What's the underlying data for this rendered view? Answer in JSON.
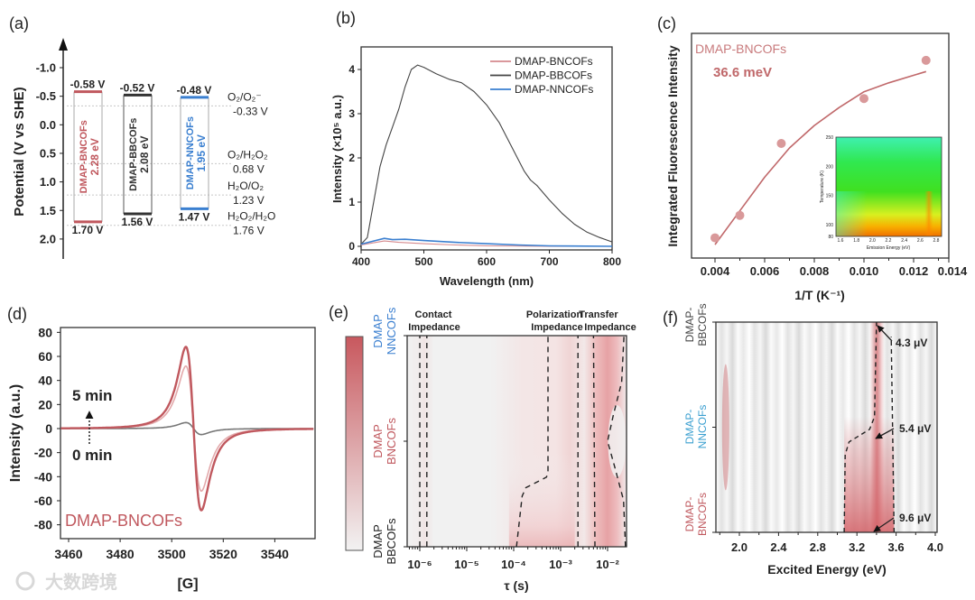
{
  "figure": {
    "panel_labels": [
      "(a)",
      "(b)",
      "(c)",
      "(d)",
      "(e)",
      "(f)"
    ],
    "watermark": "大数跨境"
  },
  "chart_data": [
    {
      "panel": "a",
      "type": "bar",
      "subtype": "band-diagram",
      "ylabel": "Potential (V vs SHE)",
      "ylim": [
        -1.3,
        2.3
      ],
      "yticks": [
        "-1.0",
        "-0.5",
        "0.0",
        "0.5",
        "1.0",
        "1.5",
        "2.0"
      ],
      "bands": [
        {
          "name": "DMAP-BNCOFs",
          "gap_label": "2.28 eV",
          "cb": -0.58,
          "vb": 1.7,
          "cb_label": "-0.58 V",
          "vb_label": "1.70 V",
          "color": "#c0585e"
        },
        {
          "name": "DMAP-BBCOFs",
          "gap_label": "2.08 eV",
          "cb": -0.52,
          "vb": 1.56,
          "cb_label": "-0.52 V",
          "vb_label": "1.56 V",
          "color": "#333333"
        },
        {
          "name": "DMAP-NNCOFs",
          "gap_label": "1.95 eV",
          "cb": -0.48,
          "vb": 1.47,
          "cb_label": "-0.48 V",
          "vb_label": "1.47 V",
          "color": "#3a7fd0"
        }
      ],
      "references": [
        {
          "label": "O₂/O₂⁻",
          "value": -0.33,
          "value_label": "-0.33 V"
        },
        {
          "label": "O₂/H₂O₂",
          "value": 0.68,
          "value_label": "0.68 V"
        },
        {
          "label": "H₂O/O₂",
          "value": 1.23,
          "value_label": "1.23 V"
        },
        {
          "label": "H₂O₂/H₂O",
          "value": 1.76,
          "value_label": "1.76 V"
        }
      ]
    },
    {
      "panel": "b",
      "type": "line",
      "xlabel": "Wavelength (nm)",
      "ylabel": "Intensity (×10⁵ a.u.)",
      "xlim": [
        400,
        800
      ],
      "ylim": [
        -0.1,
        4.5
      ],
      "xticks": [
        "400",
        "500",
        "600",
        "700",
        "800"
      ],
      "yticks": [
        "0",
        "1",
        "2",
        "3",
        "4"
      ],
      "legend_position": "top-right",
      "series": [
        {
          "name": "DMAP-BNCOFs",
          "color": "#d58a8e",
          "points": [
            [
              400,
              0.03
            ],
            [
              420,
              0.08
            ],
            [
              437,
              0.12
            ],
            [
              460,
              0.09
            ],
            [
              500,
              0.06
            ],
            [
              550,
              0.03
            ],
            [
              600,
              0.01
            ],
            [
              700,
              0.0
            ],
            [
              800,
              0.0
            ]
          ]
        },
        {
          "name": "DMAP-BBCOFs",
          "color": "#444444",
          "points": [
            [
              400,
              0.05
            ],
            [
              410,
              0.2
            ],
            [
              420,
              1.0
            ],
            [
              430,
              1.8
            ],
            [
              440,
              2.3
            ],
            [
              450,
              2.7
            ],
            [
              460,
              3.1
            ],
            [
              470,
              3.6
            ],
            [
              480,
              4.0
            ],
            [
              490,
              4.1
            ],
            [
              500,
              4.05
            ],
            [
              520,
              3.9
            ],
            [
              540,
              3.78
            ],
            [
              560,
              3.7
            ],
            [
              580,
              3.5
            ],
            [
              600,
              3.2
            ],
            [
              620,
              2.8
            ],
            [
              640,
              2.25
            ],
            [
              660,
              1.7
            ],
            [
              670,
              1.5
            ],
            [
              680,
              1.38
            ],
            [
              700,
              1.05
            ],
            [
              720,
              0.75
            ],
            [
              740,
              0.5
            ],
            [
              760,
              0.32
            ],
            [
              780,
              0.2
            ],
            [
              800,
              0.1
            ]
          ]
        },
        {
          "name": "DMAP-NNCOFs",
          "color": "#3a7fd0",
          "points": [
            [
              400,
              0.05
            ],
            [
              420,
              0.12
            ],
            [
              437,
              0.18
            ],
            [
              450,
              0.15
            ],
            [
              470,
              0.16
            ],
            [
              500,
              0.13
            ],
            [
              550,
              0.09
            ],
            [
              600,
              0.06
            ],
            [
              650,
              0.03
            ],
            [
              700,
              0.01
            ],
            [
              800,
              0.0
            ]
          ]
        }
      ]
    },
    {
      "panel": "c",
      "type": "scatter",
      "xlabel": "1/T (K⁻¹)",
      "ylabel": "Integrated Fluorescence Intensity",
      "xlim": [
        0.0035,
        0.0134
      ],
      "ylim": [
        0,
        1
      ],
      "xticks": [
        "0.004",
        "0.006",
        "0.008",
        "0.010",
        "0.012",
        "0.014"
      ],
      "sample_label": "DMAP-BNCOFs",
      "activation_energy_label": "36.6 meV",
      "points": [
        [
          0.004,
          0.09
        ],
        [
          0.005,
          0.19
        ],
        [
          0.00667,
          0.51
        ],
        [
          0.01,
          0.71
        ],
        [
          0.0125,
          0.88
        ]
      ],
      "fit": [
        [
          0.004,
          0.06
        ],
        [
          0.005,
          0.21
        ],
        [
          0.006,
          0.36
        ],
        [
          0.007,
          0.49
        ],
        [
          0.008,
          0.59
        ],
        [
          0.009,
          0.67
        ],
        [
          0.01,
          0.74
        ],
        [
          0.011,
          0.78
        ],
        [
          0.0125,
          0.83
        ]
      ],
      "color": "#c0686a",
      "inset": {
        "type": "heatmap",
        "xlabel": "Emission Energy (eV)",
        "ylabel": "Temperature (K)",
        "xlim": [
          1.57,
          2.9
        ],
        "ylim": [
          80,
          250
        ],
        "xticks": [
          "1.6",
          "1.8",
          "2.0",
          "2.2",
          "2.4",
          "2.6",
          "2.8"
        ],
        "yticks": [
          "80",
          "100",
          "150",
          "200",
          "250"
        ]
      }
    },
    {
      "panel": "d",
      "type": "line",
      "subtype": "EPR",
      "xlabel": "[G]",
      "ylabel": "Intensity (a.u.)",
      "xlim": [
        3457,
        3556
      ],
      "ylim": [
        -90,
        85
      ],
      "xticks": [
        "3460",
        "3480",
        "3500",
        "3520",
        "3540"
      ],
      "yticks": [
        "80",
        "60",
        "40",
        "20",
        "0",
        "-20",
        "-40",
        "-60",
        "-80"
      ],
      "sample_label": "DMAP-BNCOFs",
      "time_start_label": "0 min",
      "time_end_label": "5 min",
      "center_field": 3508.5,
      "linewidth": 5.2,
      "series": [
        {
          "name": "0 min",
          "peak": 5,
          "color": "#777777"
        },
        {
          "name": "intermediate",
          "peak": 52,
          "color": "#e3a9ab"
        },
        {
          "name": "5 min",
          "peak": 68,
          "color": "#c0585e"
        }
      ]
    },
    {
      "panel": "e",
      "type": "heatmap",
      "xlabel": "τ (s)",
      "xscale": "log",
      "xlim_log10": [
        -6.27,
        -1.6
      ],
      "xticks": [
        {
          "label": "10⁻⁶",
          "log": -6
        },
        {
          "label": "10⁻⁵",
          "log": -5
        },
        {
          "label": "10⁻⁴",
          "log": -4
        },
        {
          "label": "10⁻³",
          "log": -3
        },
        {
          "label": "10⁻²",
          "log": -2
        }
      ],
      "rows": [
        {
          "line1": "DMAP",
          "line2": "BBCOFs",
          "color": "#222222",
          "frac": 0
        },
        {
          "line1": "DMAP",
          "line2": "BNCOFs",
          "color": "#c0585e",
          "frac": 0.5
        },
        {
          "line1": "DMAP",
          "line2": "NNCOFs",
          "color": "#3a7fd0",
          "frac": 1
        }
      ],
      "regions": [
        {
          "line1": "Contact",
          "line2": "Impedance"
        },
        {
          "line1": "Polarization",
          "line2": "Impedance"
        },
        {
          "line1": "Transfer",
          "line2": "Impedance"
        }
      ],
      "boundaries_log10": [
        [
          [
            -6.0,
            0
          ],
          [
            -6.0,
            1
          ]
        ],
        [
          [
            -5.85,
            0
          ],
          [
            -5.85,
            1
          ]
        ],
        [
          [
            -3.94,
            0
          ],
          [
            -3.82,
            0.24
          ],
          [
            -3.74,
            0.28
          ],
          [
            -3.3,
            0.33
          ],
          [
            -3.27,
            0.36
          ],
          [
            -3.27,
            1
          ]
        ],
        [
          [
            -2.63,
            0
          ],
          [
            -2.63,
            1
          ]
        ],
        [
          [
            -2.27,
            0
          ],
          [
            -2.3,
            1
          ]
        ],
        [
          [
            -1.62,
            0
          ],
          [
            -1.66,
            0.22
          ],
          [
            -1.85,
            0.38
          ],
          [
            -2.0,
            0.5
          ],
          [
            -1.88,
            0.62
          ],
          [
            -1.7,
            0.78
          ],
          [
            -1.65,
            1
          ]
        ]
      ]
    },
    {
      "panel": "f",
      "type": "heatmap",
      "xlabel": "Excited Energy (eV)",
      "xlim": [
        1.76,
        4.02
      ],
      "xticks": [
        "2.0",
        "2.4",
        "2.8",
        "3.2",
        "3.6",
        "4.0"
      ],
      "rows": [
        {
          "line1": "DMAP-",
          "line2": "BNCOFs",
          "color": "#c0585e",
          "frac": 0
        },
        {
          "line1": "DMAP-",
          "line2": "NNCOFs",
          "color": "#3a9fd0",
          "frac": 0.5
        },
        {
          "line1": "DMAP-",
          "line2": "BBCOFs",
          "color": "#444444",
          "frac": 1
        }
      ],
      "boundaries_eV": [
        [
          [
            3.07,
            0
          ],
          [
            3.08,
            0.37
          ],
          [
            3.12,
            0.43
          ],
          [
            3.33,
            0.49
          ],
          [
            3.38,
            0.55
          ],
          [
            3.4,
            1
          ]
        ],
        [
          [
            3.58,
            0
          ],
          [
            3.55,
            0.93
          ]
        ]
      ],
      "annotations": [
        {
          "label": "4.3 μV",
          "frac": 0.93,
          "energy": 3.4
        },
        {
          "label": "5.4 μV",
          "frac": 0.5,
          "energy": 3.39
        },
        {
          "label": "9.6 μV",
          "frac": 0.07,
          "energy": 3.38
        }
      ]
    }
  ]
}
